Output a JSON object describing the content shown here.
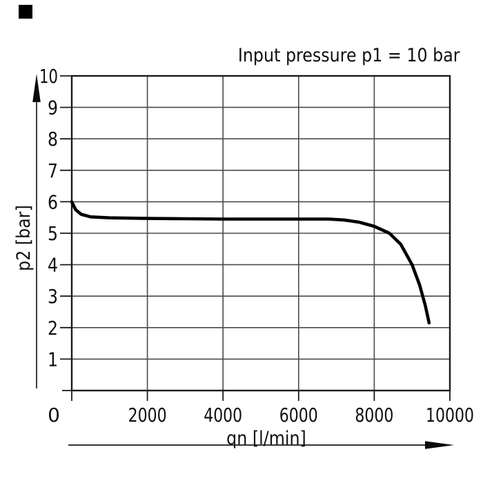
{
  "page": {
    "background": "#ffffff",
    "marker_color": "#000000"
  },
  "chart_data": {
    "type": "line",
    "title": "Input pressure p1 = 10 bar",
    "xlabel": "qn [l/min]",
    "ylabel": "p2 [bar]",
    "xlim": [
      0,
      10000
    ],
    "ylim": [
      0,
      10
    ],
    "x_ticks": [
      0,
      2000,
      4000,
      6000,
      8000,
      10000
    ],
    "y_ticks": [
      0,
      1,
      2,
      3,
      4,
      5,
      6,
      7,
      8,
      9,
      10
    ],
    "grid": true,
    "legend": "none",
    "line_color": "#000000",
    "grid_color": "#4a4a4a",
    "axis_color": "#1a1a1a",
    "series": [
      {
        "points": [
          [
            0,
            6.0
          ],
          [
            100,
            5.75
          ],
          [
            250,
            5.6
          ],
          [
            500,
            5.52
          ],
          [
            1000,
            5.49
          ],
          [
            2000,
            5.47
          ],
          [
            3000,
            5.46
          ],
          [
            4000,
            5.45
          ],
          [
            5000,
            5.45
          ],
          [
            6000,
            5.45
          ],
          [
            6800,
            5.45
          ],
          [
            7200,
            5.42
          ],
          [
            7600,
            5.35
          ],
          [
            8000,
            5.22
          ],
          [
            8400,
            5.0
          ],
          [
            8700,
            4.65
          ],
          [
            9000,
            4.0
          ],
          [
            9200,
            3.35
          ],
          [
            9350,
            2.7
          ],
          [
            9450,
            2.15
          ]
        ]
      }
    ]
  }
}
